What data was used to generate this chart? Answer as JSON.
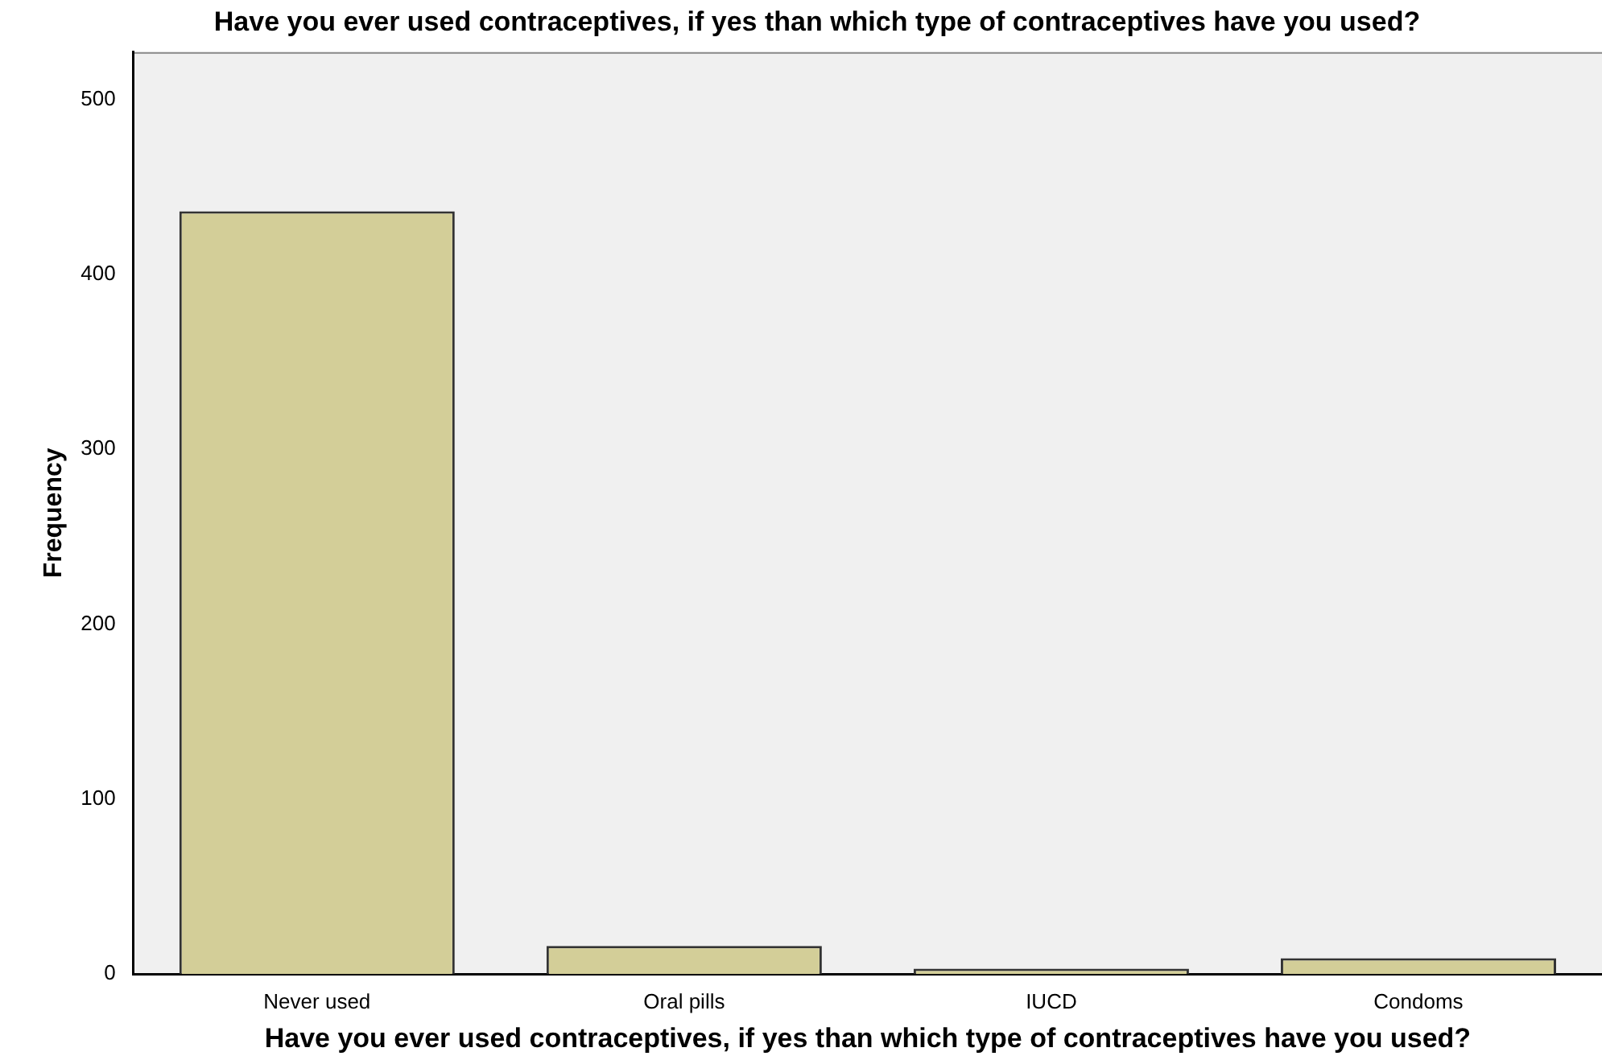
{
  "chart_data": {
    "type": "bar",
    "title": "Have you ever used contraceptives, if yes than which type of contraceptives have you used?",
    "xlabel": "Have you ever used contraceptives, if yes than which type of contraceptives have you used?",
    "ylabel": "Frequency",
    "categories": [
      "Never used",
      "Oral pills",
      "IUCD",
      "Condoms"
    ],
    "values": [
      436,
      16,
      3,
      9
    ],
    "color": "#d3ce98",
    "ylim": [
      0,
      527
    ],
    "yticks": [
      0,
      100,
      200,
      300,
      400,
      500
    ],
    "grid": false,
    "legend": false
  }
}
